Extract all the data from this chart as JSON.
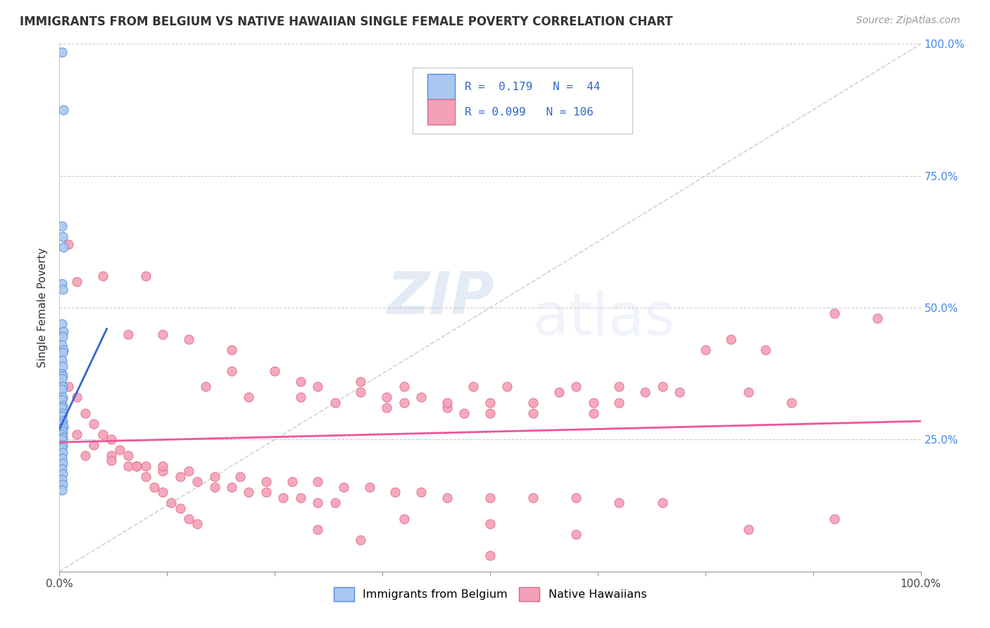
{
  "title": "IMMIGRANTS FROM BELGIUM VS NATIVE HAWAIIAN SINGLE FEMALE POVERTY CORRELATION CHART",
  "source": "Source: ZipAtlas.com",
  "ylabel": "Single Female Poverty",
  "xlim": [
    0,
    1.0
  ],
  "ylim": [
    0,
    1.0
  ],
  "color_blue": "#A8C8F0",
  "color_pink": "#F4A0B8",
  "edge_blue": "#5588DD",
  "edge_pink": "#E06880",
  "line_blue": "#3366CC",
  "line_pink": "#EE5599",
  "blue_scatter": [
    [
      0.003,
      0.985
    ],
    [
      0.005,
      0.875
    ],
    [
      0.003,
      0.655
    ],
    [
      0.004,
      0.635
    ],
    [
      0.005,
      0.615
    ],
    [
      0.003,
      0.545
    ],
    [
      0.004,
      0.535
    ],
    [
      0.003,
      0.47
    ],
    [
      0.005,
      0.455
    ],
    [
      0.004,
      0.445
    ],
    [
      0.003,
      0.43
    ],
    [
      0.005,
      0.42
    ],
    [
      0.004,
      0.415
    ],
    [
      0.003,
      0.4
    ],
    [
      0.004,
      0.39
    ],
    [
      0.003,
      0.375
    ],
    [
      0.004,
      0.37
    ],
    [
      0.003,
      0.365
    ],
    [
      0.004,
      0.35
    ],
    [
      0.003,
      0.345
    ],
    [
      0.004,
      0.33
    ],
    [
      0.003,
      0.325
    ],
    [
      0.004,
      0.315
    ],
    [
      0.003,
      0.31
    ],
    [
      0.004,
      0.3
    ],
    [
      0.003,
      0.295
    ],
    [
      0.004,
      0.285
    ],
    [
      0.003,
      0.28
    ],
    [
      0.005,
      0.275
    ],
    [
      0.003,
      0.27
    ],
    [
      0.004,
      0.265
    ],
    [
      0.003,
      0.26
    ],
    [
      0.004,
      0.255
    ],
    [
      0.003,
      0.25
    ],
    [
      0.004,
      0.24
    ],
    [
      0.003,
      0.235
    ],
    [
      0.004,
      0.225
    ],
    [
      0.003,
      0.215
    ],
    [
      0.004,
      0.205
    ],
    [
      0.003,
      0.195
    ],
    [
      0.004,
      0.185
    ],
    [
      0.003,
      0.175
    ],
    [
      0.004,
      0.165
    ],
    [
      0.003,
      0.155
    ]
  ],
  "pink_scatter": [
    [
      0.01,
      0.62
    ],
    [
      0.02,
      0.55
    ],
    [
      0.05,
      0.56
    ],
    [
      0.08,
      0.45
    ],
    [
      0.1,
      0.56
    ],
    [
      0.12,
      0.45
    ],
    [
      0.15,
      0.44
    ],
    [
      0.17,
      0.35
    ],
    [
      0.2,
      0.42
    ],
    [
      0.2,
      0.38
    ],
    [
      0.22,
      0.33
    ],
    [
      0.25,
      0.38
    ],
    [
      0.28,
      0.36
    ],
    [
      0.28,
      0.33
    ],
    [
      0.3,
      0.35
    ],
    [
      0.32,
      0.32
    ],
    [
      0.35,
      0.36
    ],
    [
      0.35,
      0.34
    ],
    [
      0.38,
      0.33
    ],
    [
      0.38,
      0.31
    ],
    [
      0.4,
      0.35
    ],
    [
      0.4,
      0.32
    ],
    [
      0.42,
      0.33
    ],
    [
      0.45,
      0.31
    ],
    [
      0.45,
      0.32
    ],
    [
      0.47,
      0.3
    ],
    [
      0.48,
      0.35
    ],
    [
      0.5,
      0.3
    ],
    [
      0.5,
      0.32
    ],
    [
      0.52,
      0.35
    ],
    [
      0.55,
      0.32
    ],
    [
      0.55,
      0.3
    ],
    [
      0.58,
      0.34
    ],
    [
      0.6,
      0.35
    ],
    [
      0.62,
      0.32
    ],
    [
      0.62,
      0.3
    ],
    [
      0.65,
      0.35
    ],
    [
      0.65,
      0.32
    ],
    [
      0.68,
      0.34
    ],
    [
      0.7,
      0.35
    ],
    [
      0.72,
      0.34
    ],
    [
      0.75,
      0.42
    ],
    [
      0.78,
      0.44
    ],
    [
      0.8,
      0.34
    ],
    [
      0.82,
      0.42
    ],
    [
      0.85,
      0.32
    ],
    [
      0.9,
      0.49
    ],
    [
      0.95,
      0.48
    ],
    [
      0.01,
      0.35
    ],
    [
      0.02,
      0.33
    ],
    [
      0.03,
      0.3
    ],
    [
      0.04,
      0.28
    ],
    [
      0.05,
      0.26
    ],
    [
      0.06,
      0.25
    ],
    [
      0.07,
      0.23
    ],
    [
      0.08,
      0.22
    ],
    [
      0.09,
      0.2
    ],
    [
      0.1,
      0.18
    ],
    [
      0.11,
      0.16
    ],
    [
      0.12,
      0.15
    ],
    [
      0.13,
      0.13
    ],
    [
      0.14,
      0.12
    ],
    [
      0.15,
      0.1
    ],
    [
      0.16,
      0.09
    ],
    [
      0.02,
      0.26
    ],
    [
      0.04,
      0.24
    ],
    [
      0.06,
      0.22
    ],
    [
      0.08,
      0.2
    ],
    [
      0.1,
      0.2
    ],
    [
      0.12,
      0.19
    ],
    [
      0.14,
      0.18
    ],
    [
      0.16,
      0.17
    ],
    [
      0.18,
      0.16
    ],
    [
      0.2,
      0.16
    ],
    [
      0.22,
      0.15
    ],
    [
      0.24,
      0.15
    ],
    [
      0.26,
      0.14
    ],
    [
      0.28,
      0.14
    ],
    [
      0.3,
      0.13
    ],
    [
      0.32,
      0.13
    ],
    [
      0.03,
      0.22
    ],
    [
      0.06,
      0.21
    ],
    [
      0.09,
      0.2
    ],
    [
      0.12,
      0.2
    ],
    [
      0.15,
      0.19
    ],
    [
      0.18,
      0.18
    ],
    [
      0.21,
      0.18
    ],
    [
      0.24,
      0.17
    ],
    [
      0.27,
      0.17
    ],
    [
      0.3,
      0.17
    ],
    [
      0.33,
      0.16
    ],
    [
      0.36,
      0.16
    ],
    [
      0.39,
      0.15
    ],
    [
      0.42,
      0.15
    ],
    [
      0.45,
      0.14
    ],
    [
      0.5,
      0.14
    ],
    [
      0.55,
      0.14
    ],
    [
      0.6,
      0.14
    ],
    [
      0.65,
      0.13
    ],
    [
      0.7,
      0.13
    ],
    [
      0.3,
      0.08
    ],
    [
      0.35,
      0.06
    ],
    [
      0.4,
      0.1
    ],
    [
      0.5,
      0.09
    ],
    [
      0.6,
      0.07
    ],
    [
      0.8,
      0.08
    ],
    [
      0.9,
      0.1
    ],
    [
      0.5,
      0.03
    ]
  ],
  "blue_line_x": [
    0.0,
    0.055
  ],
  "blue_line_y": [
    0.27,
    0.46
  ],
  "pink_line_x": [
    0.0,
    1.0
  ],
  "pink_line_y": [
    0.245,
    0.285
  ]
}
